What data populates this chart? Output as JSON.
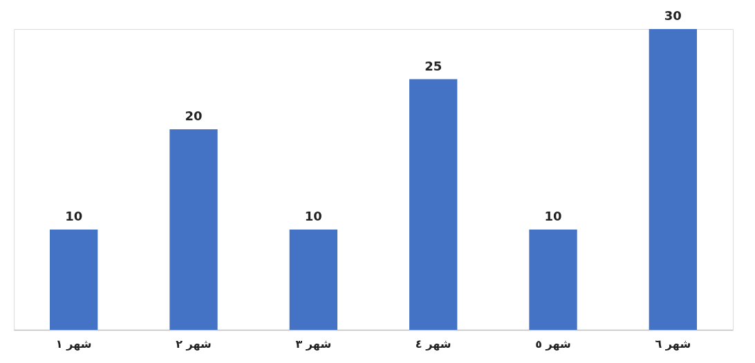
{
  "chart_data": {
    "type": "bar",
    "categories": [
      "شهر ١",
      "شهر ٢",
      "شهر ٣",
      "شهر ٤",
      "شهر ٥",
      "شهر ٦"
    ],
    "values": [
      10,
      20,
      10,
      25,
      10,
      30
    ],
    "color": "#4472c4",
    "data_labels": true,
    "grid": false,
    "tick_labels": "x"
  }
}
